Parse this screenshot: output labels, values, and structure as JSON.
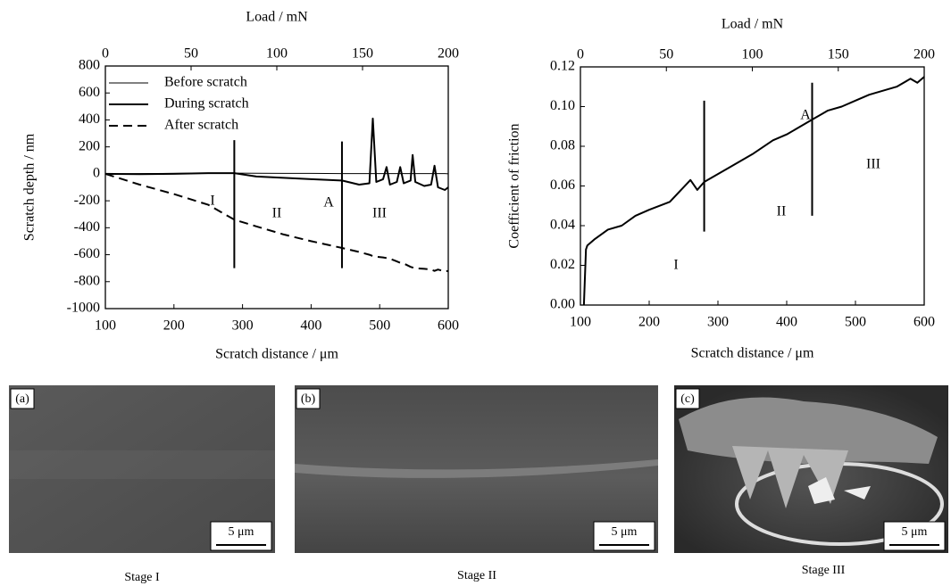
{
  "chart_data": [
    {
      "type": "line",
      "x_label": "Scratch distance / μm",
      "x2_label": "Load / mN",
      "y_label": "Scratch depth / nm",
      "x": [
        100,
        150,
        200,
        250,
        288,
        320,
        360,
        400,
        445,
        470,
        485,
        490,
        495,
        505,
        510,
        515,
        525,
        530,
        535,
        545,
        548,
        552,
        565,
        575,
        580,
        585,
        595,
        600
      ],
      "xlim": [
        100,
        600
      ],
      "xticks": [
        100,
        200,
        300,
        400,
        500,
        600
      ],
      "x2lim": [
        0,
        200
      ],
      "x2ticks": [
        0,
        50,
        100,
        150,
        200
      ],
      "ylim": [
        -1000,
        800
      ],
      "yticks": [
        800,
        600,
        400,
        200,
        0,
        -200,
        -400,
        -600,
        -800,
        -1000
      ],
      "legend": "upper left",
      "series": [
        {
          "name": "Before scratch",
          "color": "#000000",
          "line_style": "thin",
          "values": [
            0,
            2,
            3,
            5,
            5,
            4,
            3,
            3,
            2,
            2,
            2,
            2,
            2,
            2,
            2,
            2,
            2,
            2,
            2,
            2,
            2,
            2,
            2,
            2,
            2,
            2,
            2,
            0
          ]
        },
        {
          "name": "During scratch",
          "color": "#000000",
          "line_style": "solid",
          "values": [
            0,
            -2,
            0,
            5,
            5,
            -20,
            -30,
            -40,
            -50,
            -80,
            -70,
            410,
            -60,
            -40,
            50,
            -80,
            -60,
            50,
            -70,
            -50,
            140,
            -60,
            -90,
            -80,
            60,
            -100,
            -120,
            -100
          ]
        },
        {
          "name": "After scratch",
          "color": "#000000",
          "line_style": "dashed",
          "values": [
            0,
            -80,
            -150,
            -230,
            -340,
            -390,
            -450,
            -500,
            -550,
            -580,
            -600,
            -610,
            -615,
            -620,
            -625,
            -630,
            -650,
            -660,
            -665,
            -690,
            -695,
            -700,
            -705,
            -710,
            -720,
            -710,
            -725,
            -720
          ]
        }
      ],
      "stage_lines": [
        {
          "x": 288,
          "y": [
            -700,
            250
          ]
        },
        {
          "x": 445,
          "y": [
            -700,
            240
          ]
        }
      ],
      "annotations": [
        "I",
        "II",
        "A",
        "III"
      ]
    },
    {
      "type": "line",
      "x_label": "Scratch distance / μm",
      "x2_label": "Load / mN",
      "y_label": "Coefficient of friction",
      "x": [
        105,
        108,
        110,
        120,
        140,
        160,
        180,
        200,
        230,
        260,
        270,
        280,
        300,
        320,
        350,
        380,
        400,
        420,
        440,
        460,
        480,
        500,
        520,
        540,
        560,
        580,
        590,
        600
      ],
      "xlim": [
        100,
        600
      ],
      "xticks": [
        100,
        200,
        300,
        400,
        500,
        600
      ],
      "x2lim": [
        0,
        200
      ],
      "x2ticks": [
        0,
        50,
        100,
        150,
        200
      ],
      "ylim": [
        0,
        0.12
      ],
      "yticks": [
        {
          "value": 0,
          "label": "0.00"
        },
        0.02,
        0.04,
        0.06,
        0.08,
        {
          "value": 0.1,
          "label": "0.10"
        },
        0.12
      ],
      "series": [
        {
          "color": "#000000",
          "line_style": "solid",
          "values": [
            0.0,
            0.028,
            0.03,
            0.033,
            0.038,
            0.04,
            0.045,
            0.048,
            0.052,
            0.063,
            0.058,
            0.062,
            0.066,
            0.07,
            0.076,
            0.083,
            0.086,
            0.09,
            0.094,
            0.098,
            0.1,
            0.103,
            0.106,
            0.108,
            0.11,
            0.114,
            0.112,
            0.115
          ]
        }
      ],
      "stage_lines": [
        {
          "x": 280,
          "y": [
            0.037,
            0.103
          ]
        },
        {
          "x": 437,
          "y": [
            0.045,
            0.112
          ]
        }
      ],
      "annotations": [
        "I",
        "II",
        "III",
        "A"
      ]
    }
  ],
  "panels": [
    {
      "label": "(a)",
      "scale": "5 μm",
      "caption": "Stage I"
    },
    {
      "label": "(b)",
      "scale": "5 μm",
      "caption": "Stage II"
    },
    {
      "label": "(c)",
      "scale": "5 μm",
      "caption": "Stage III"
    }
  ]
}
